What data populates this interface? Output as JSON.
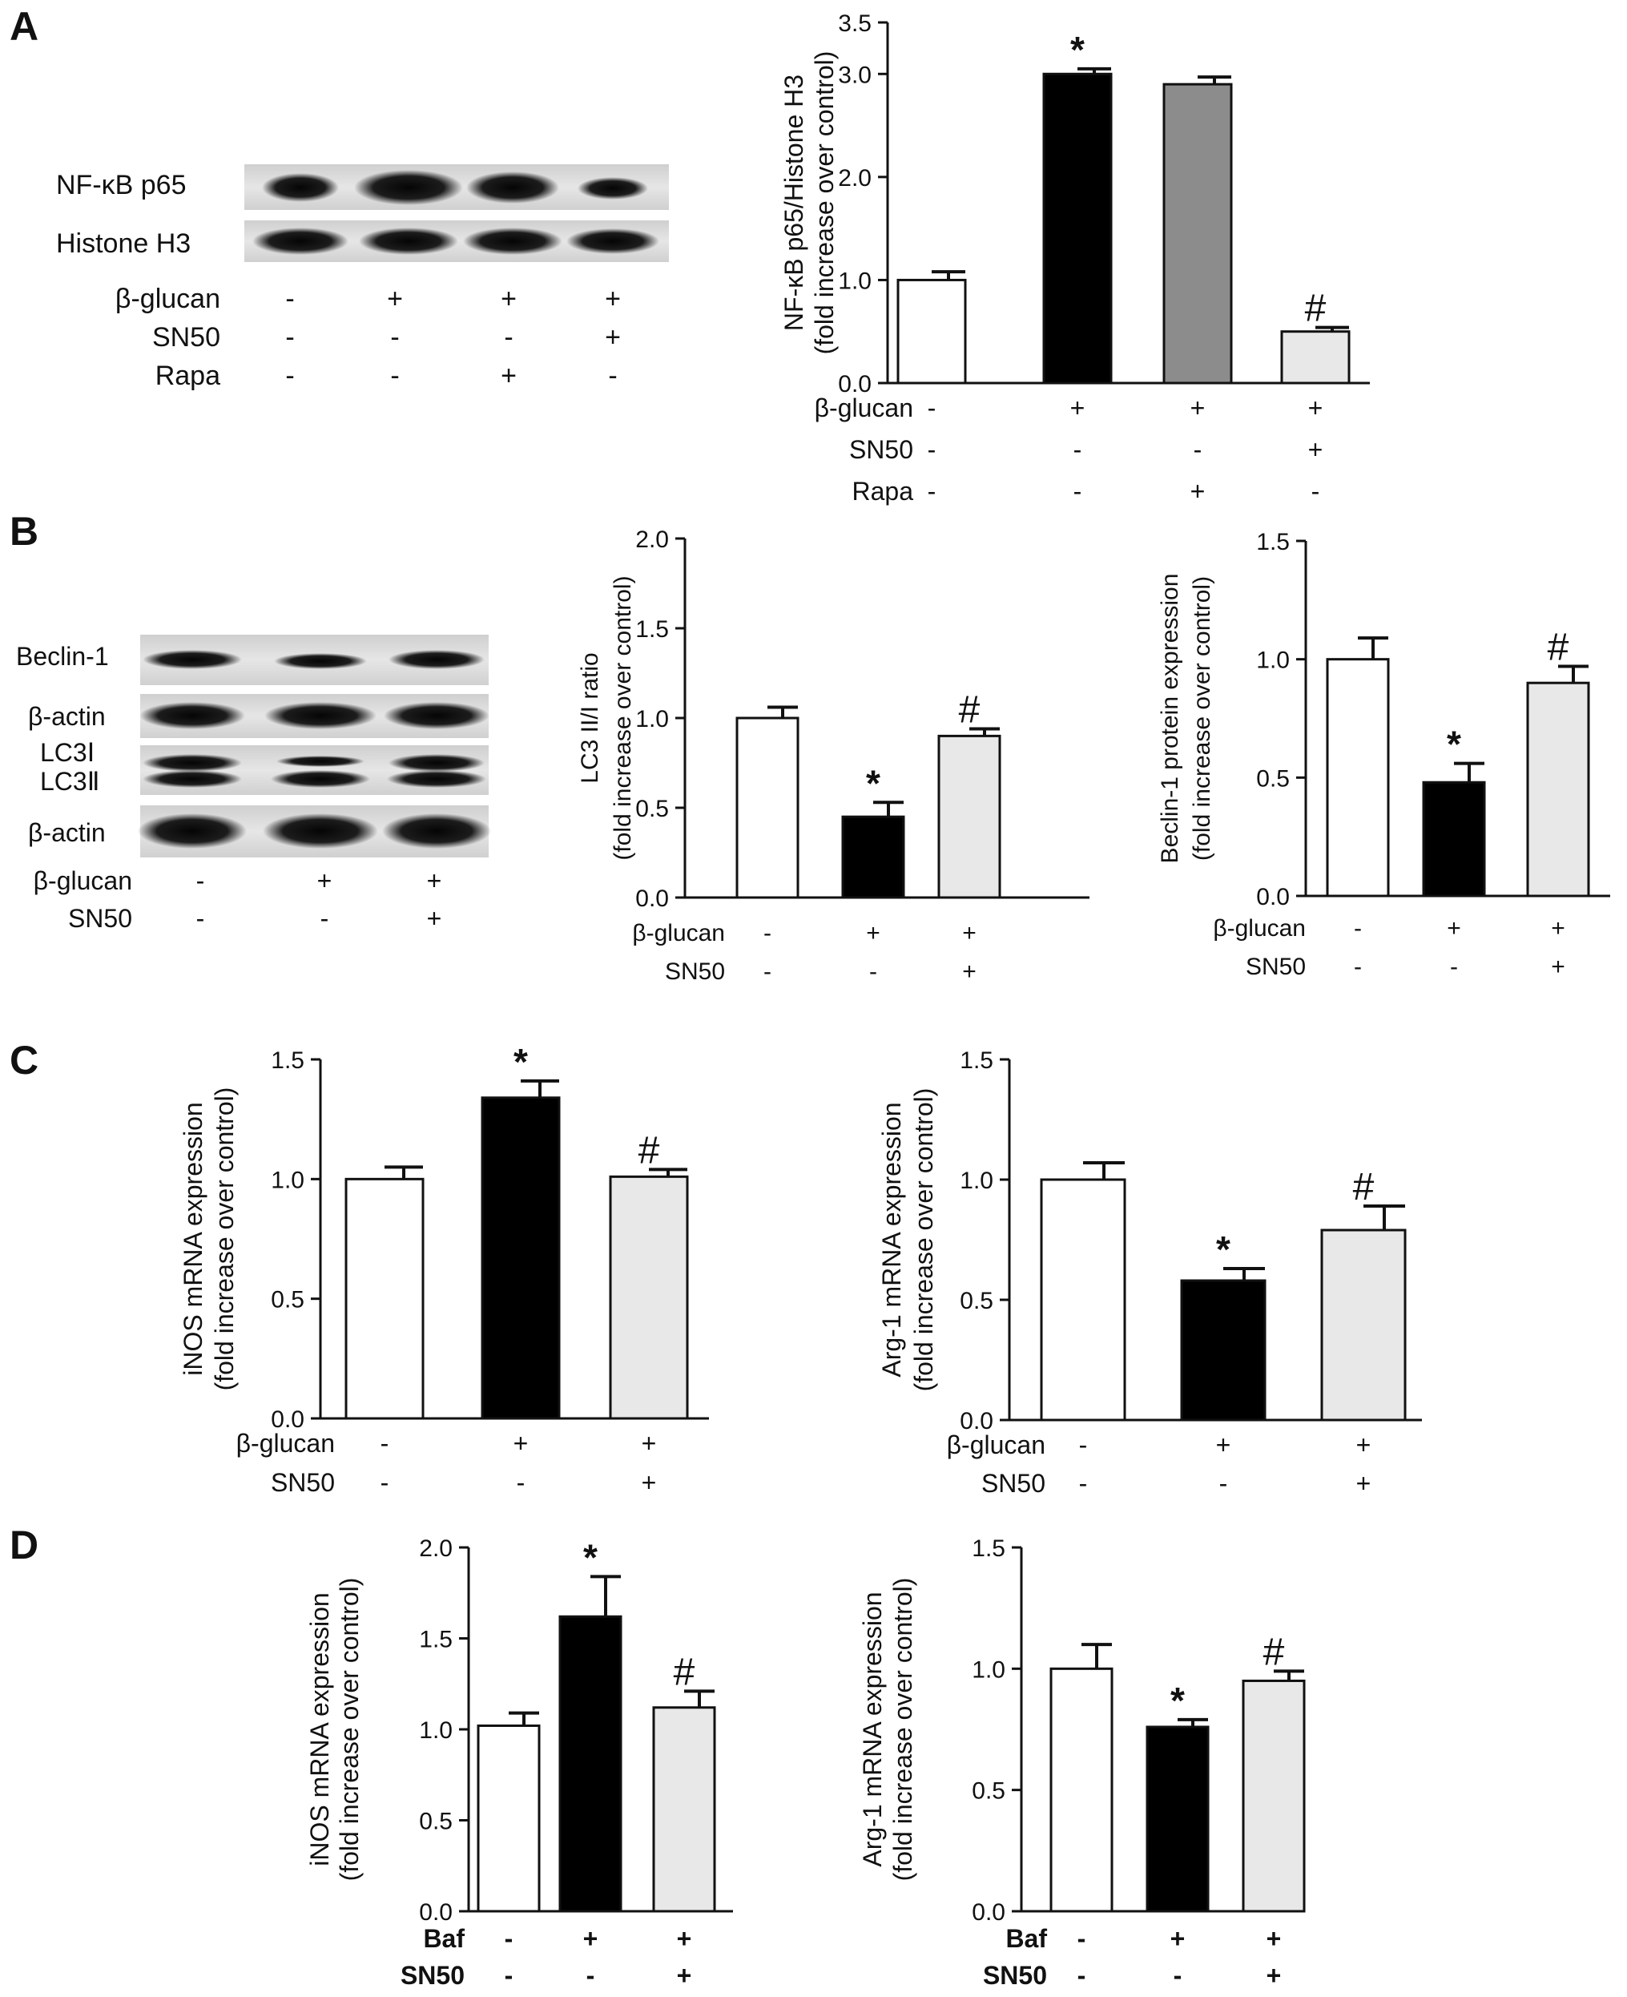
{
  "panel_letters": [
    "A",
    "B",
    "C",
    "D"
  ],
  "signs": {
    "plus": "+",
    "minus": "-"
  },
  "colors": {
    "bar_fills": [
      "#ffffff",
      "#000000",
      "#8c8c8c",
      "#e8e8e8"
    ],
    "axis": "#111111"
  },
  "blots": {
    "A": {
      "bands": [
        "NF-κB p65",
        "Histone H3"
      ],
      "lanes": 4,
      "treatments": [
        {
          "name": "β-glucan",
          "signs": [
            "-",
            "+",
            "+",
            "+"
          ]
        },
        {
          "name": "SN50",
          "signs": [
            "-",
            "-",
            "-",
            "+"
          ]
        },
        {
          "name": "Rapa",
          "signs": [
            "-",
            "-",
            "+",
            "-"
          ]
        }
      ]
    },
    "B": {
      "bands": [
        "Beclin-1",
        "β-actin",
        "LC3Ⅰ\nLC3Ⅱ",
        "β-actin"
      ],
      "lanes": 3,
      "treatments": [
        {
          "name": "β-glucan",
          "signs": [
            "-",
            "+",
            "+"
          ]
        },
        {
          "name": "SN50",
          "signs": [
            "-",
            "-",
            "+"
          ]
        }
      ]
    }
  },
  "chart_data": [
    {
      "id": "A",
      "type": "bar",
      "ylabel": [
        "NF-κB p65/Histone H3",
        "(fold increase over control)"
      ],
      "ylim": [
        0,
        3.5
      ],
      "yticks": [
        "0.0",
        "1.0",
        "2.0",
        "3.0",
        "3.5"
      ],
      "values": [
        1.0,
        3.0,
        2.9,
        0.5
      ],
      "errors": [
        0.08,
        0.05,
        0.07,
        0.04
      ],
      "markers": [
        "",
        "*",
        "",
        "#"
      ],
      "treatments": [
        {
          "name": "β-glucan",
          "signs": [
            "-",
            "+",
            "+",
            "+"
          ]
        },
        {
          "name": "SN50",
          "signs": [
            "-",
            "-",
            "-",
            "+"
          ]
        },
        {
          "name": "Rapa",
          "signs": [
            "-",
            "-",
            "+",
            "-"
          ]
        }
      ]
    },
    {
      "id": "B-LC3",
      "type": "bar",
      "ylabel": [
        "LC3 II/I ratio",
        "(fold increase over control)"
      ],
      "ylim": [
        0,
        2.0
      ],
      "yticks": [
        "0.0",
        "0.5",
        "1.0",
        "1.5",
        "2.0"
      ],
      "values": [
        1.0,
        0.45,
        0.9
      ],
      "errors": [
        0.06,
        0.08,
        0.04
      ],
      "markers": [
        "",
        "*",
        "#"
      ],
      "treatments": [
        {
          "name": "β-glucan",
          "signs": [
            "-",
            "+",
            "+"
          ]
        },
        {
          "name": "SN50",
          "signs": [
            "-",
            "-",
            "+"
          ]
        }
      ]
    },
    {
      "id": "B-Beclin",
      "type": "bar",
      "ylabel": [
        "Beclin-1 protein expression",
        "(fold increase over control)"
      ],
      "ylim": [
        0,
        1.5
      ],
      "yticks": [
        "0.0",
        "0.5",
        "1.0",
        "1.5"
      ],
      "values": [
        1.0,
        0.48,
        0.9
      ],
      "errors": [
        0.09,
        0.08,
        0.07
      ],
      "markers": [
        "",
        "*",
        "#"
      ],
      "treatments": [
        {
          "name": "β-glucan",
          "signs": [
            "-",
            "+",
            "+"
          ]
        },
        {
          "name": "SN50",
          "signs": [
            "-",
            "-",
            "+"
          ]
        }
      ]
    },
    {
      "id": "C-iNOS",
      "type": "bar",
      "ylabel": [
        "iNOS mRNA expression",
        "(fold increase over control)"
      ],
      "ylim": [
        0,
        1.5
      ],
      "yticks": [
        "0.0",
        "0.5",
        "1.0",
        "1.5"
      ],
      "values": [
        1.0,
        1.34,
        1.01
      ],
      "errors": [
        0.05,
        0.07,
        0.03
      ],
      "markers": [
        "",
        "*",
        "#"
      ],
      "treatments": [
        {
          "name": "β-glucan",
          "signs": [
            "-",
            "+",
            "+"
          ]
        },
        {
          "name": "SN50",
          "signs": [
            "-",
            "-",
            "+"
          ]
        }
      ]
    },
    {
      "id": "C-Arg",
      "type": "bar",
      "ylabel": [
        "Arg-1 mRNA expression",
        "(fold increase over control)"
      ],
      "ylim": [
        0,
        1.5
      ],
      "yticks": [
        "0.0",
        "0.5",
        "1.0",
        "1.5"
      ],
      "values": [
        1.0,
        0.58,
        0.79
      ],
      "errors": [
        0.07,
        0.05,
        0.1
      ],
      "markers": [
        "",
        "*",
        "#"
      ],
      "treatments": [
        {
          "name": "β-glucan",
          "signs": [
            "-",
            "+",
            "+"
          ]
        },
        {
          "name": "SN50",
          "signs": [
            "-",
            "-",
            "+"
          ]
        }
      ]
    },
    {
      "id": "D-iNOS",
      "type": "bar",
      "ylabel": [
        "iNOS mRNA expression",
        "(fold increase over control)"
      ],
      "ylim": [
        0,
        2.0
      ],
      "yticks": [
        "0.0",
        "0.5",
        "1.0",
        "1.5",
        "2.0"
      ],
      "values": [
        1.02,
        1.62,
        1.12
      ],
      "errors": [
        0.07,
        0.22,
        0.09
      ],
      "markers": [
        "",
        "*",
        "#"
      ],
      "treatments": [
        {
          "name": "Baf",
          "signs": [
            "-",
            "+",
            "+"
          ]
        },
        {
          "name": "SN50",
          "signs": [
            "-",
            "-",
            "+"
          ]
        }
      ]
    },
    {
      "id": "D-Arg",
      "type": "bar",
      "ylabel": [
        "Arg-1 mRNA expression",
        "(fold increase over control)"
      ],
      "ylim": [
        0,
        1.5
      ],
      "yticks": [
        "0.0",
        "0.5",
        "1.0",
        "1.5"
      ],
      "values": [
        1.0,
        0.76,
        0.95
      ],
      "errors": [
        0.1,
        0.03,
        0.04
      ],
      "markers": [
        "",
        "*",
        "#"
      ],
      "treatments": [
        {
          "name": "Baf",
          "signs": [
            "-",
            "+",
            "+"
          ]
        },
        {
          "name": "SN50",
          "signs": [
            "-",
            "-",
            "+"
          ]
        }
      ]
    }
  ]
}
